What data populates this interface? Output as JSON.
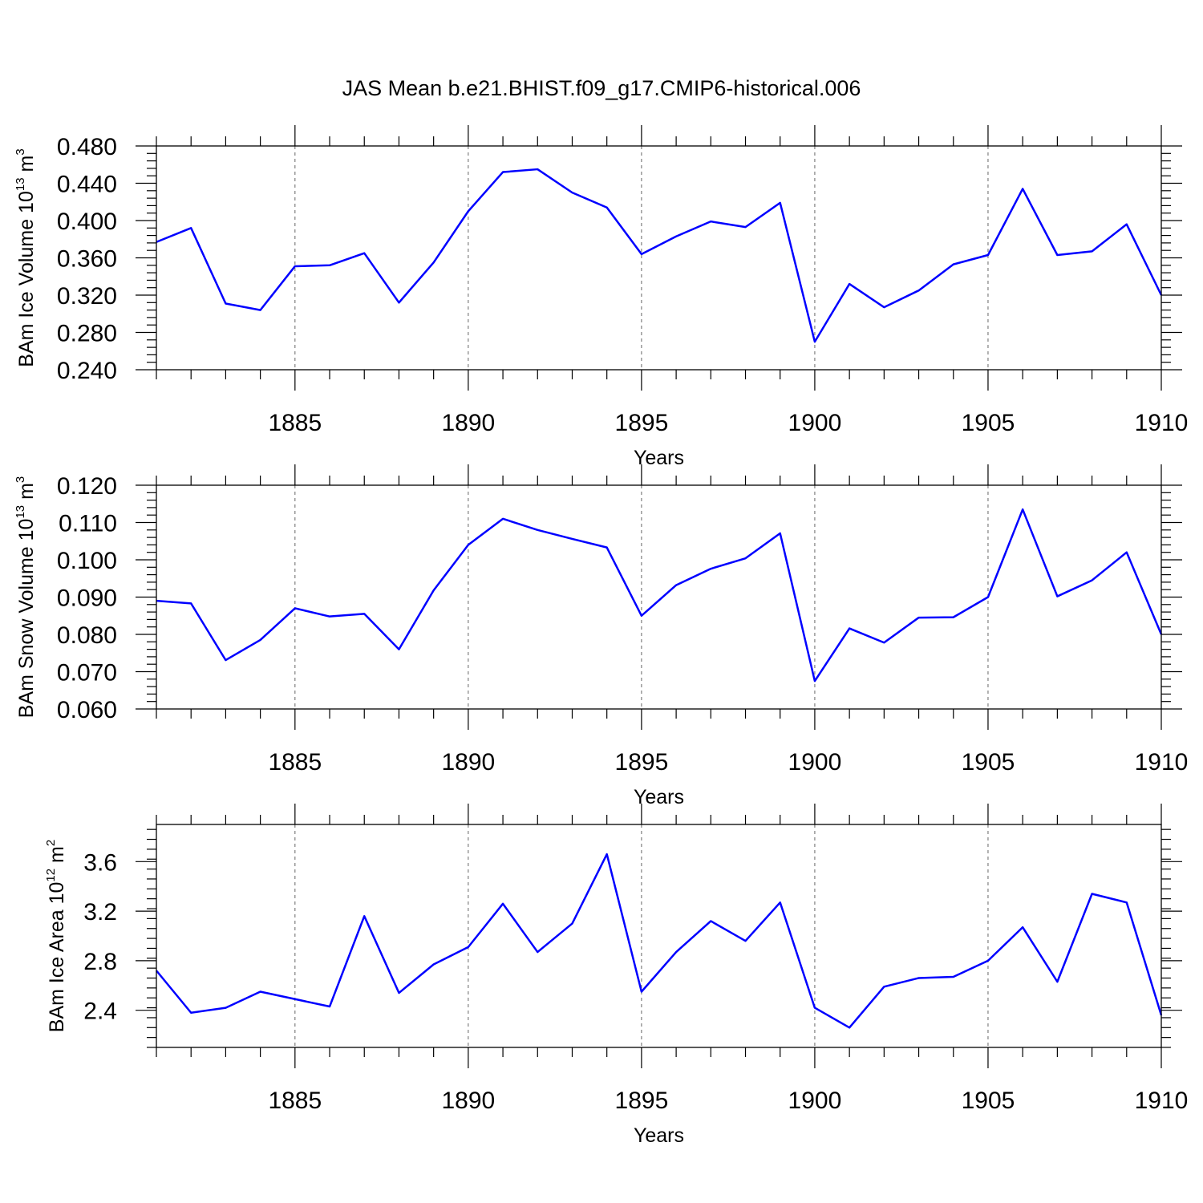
{
  "title": "JAS Mean b.e21.BHIST.f09_g17.CMIP6-historical.006",
  "chart_data": [
    {
      "type": "line",
      "ylabel_main": "BAm Ice Volume 10",
      "ylabel_exp": "13",
      "ylabel_unit": " m",
      "ylabel_unit_exp": "3",
      "xlabel": "Years",
      "xlim": [
        1881,
        1910
      ],
      "ylim": [
        0.24,
        0.48
      ],
      "yticks": [
        0.24,
        0.28,
        0.32,
        0.36,
        0.4,
        0.44,
        0.48
      ],
      "ytick_labels": [
        "0.240",
        "0.280",
        "0.320",
        "0.360",
        "0.400",
        "0.440",
        "0.480"
      ],
      "yminor_step": 0.008,
      "xticks": [
        1885,
        1890,
        1895,
        1900,
        1905,
        1910
      ],
      "xtick_labels": [
        "1885",
        "1890",
        "1895",
        "1900",
        "1905",
        "1910"
      ],
      "x": [
        1881,
        1882,
        1883,
        1884,
        1885,
        1886,
        1887,
        1888,
        1889,
        1890,
        1891,
        1892,
        1893,
        1894,
        1895,
        1896,
        1897,
        1898,
        1899,
        1900,
        1901,
        1902,
        1903,
        1904,
        1905,
        1906,
        1907,
        1908,
        1909,
        1910
      ],
      "y": [
        0.377,
        0.392,
        0.311,
        0.304,
        0.351,
        0.352,
        0.365,
        0.312,
        0.355,
        0.41,
        0.452,
        0.455,
        0.43,
        0.414,
        0.364,
        0.383,
        0.399,
        0.393,
        0.419,
        0.27,
        0.332,
        0.307,
        0.325,
        0.353,
        0.363,
        0.434,
        0.363,
        0.367,
        0.396,
        0.32
      ]
    },
    {
      "type": "line",
      "ylabel_main": "BAm Snow Volume 10",
      "ylabel_exp": "13",
      "ylabel_unit": " m",
      "ylabel_unit_exp": "3",
      "xlabel": "Years",
      "xlim": [
        1881,
        1910
      ],
      "ylim": [
        0.06,
        0.12
      ],
      "yticks": [
        0.06,
        0.07,
        0.08,
        0.09,
        0.1,
        0.11,
        0.12
      ],
      "ytick_labels": [
        "0.060",
        "0.070",
        "0.080",
        "0.090",
        "0.100",
        "0.110",
        "0.120"
      ],
      "yminor_step": 0.002,
      "xticks": [
        1885,
        1890,
        1895,
        1900,
        1905,
        1910
      ],
      "xtick_labels": [
        "1885",
        "1890",
        "1895",
        "1900",
        "1905",
        "1910"
      ],
      "x": [
        1881,
        1882,
        1883,
        1884,
        1885,
        1886,
        1887,
        1888,
        1889,
        1890,
        1891,
        1892,
        1893,
        1894,
        1895,
        1896,
        1897,
        1898,
        1899,
        1900,
        1901,
        1902,
        1903,
        1904,
        1905,
        1906,
        1907,
        1908,
        1909,
        1910
      ],
      "y": [
        0.089,
        0.0883,
        0.0731,
        0.0785,
        0.087,
        0.0848,
        0.0855,
        0.076,
        0.0918,
        0.104,
        0.111,
        0.108,
        0.1056,
        0.1033,
        0.085,
        0.0932,
        0.0976,
        0.1004,
        0.1071,
        0.0675,
        0.0816,
        0.0778,
        0.0845,
        0.0846,
        0.09,
        0.1135,
        0.0902,
        0.0945,
        0.102,
        0.08
      ]
    },
    {
      "type": "line",
      "ylabel_main": "BAm Ice Area 10",
      "ylabel_exp": "12",
      "ylabel_unit": " m",
      "ylabel_unit_exp": "2",
      "xlabel": "Years",
      "xlim": [
        1881,
        1910
      ],
      "ylim": [
        2.1,
        3.9
      ],
      "yticks": [
        2.4,
        2.8,
        3.2,
        3.6
      ],
      "ytick_labels": [
        "2.4",
        "2.8",
        "3.2",
        "3.6"
      ],
      "yminor_step": 0.08,
      "xticks": [
        1885,
        1890,
        1895,
        1900,
        1905,
        1910
      ],
      "xtick_labels": [
        "1885",
        "1890",
        "1895",
        "1900",
        "1905",
        "1910"
      ],
      "x": [
        1881,
        1882,
        1883,
        1884,
        1885,
        1886,
        1887,
        1888,
        1889,
        1890,
        1891,
        1892,
        1893,
        1894,
        1895,
        1896,
        1897,
        1898,
        1899,
        1900,
        1901,
        1902,
        1903,
        1904,
        1905,
        1906,
        1907,
        1908,
        1909,
        1910
      ],
      "y": [
        2.72,
        2.38,
        2.42,
        2.55,
        2.49,
        2.43,
        3.16,
        2.54,
        2.77,
        2.91,
        3.26,
        2.87,
        3.1,
        3.66,
        2.55,
        2.87,
        3.12,
        2.96,
        3.27,
        2.42,
        2.26,
        2.59,
        2.66,
        2.67,
        2.8,
        3.07,
        2.63,
        3.34,
        3.27,
        2.36
      ]
    }
  ]
}
